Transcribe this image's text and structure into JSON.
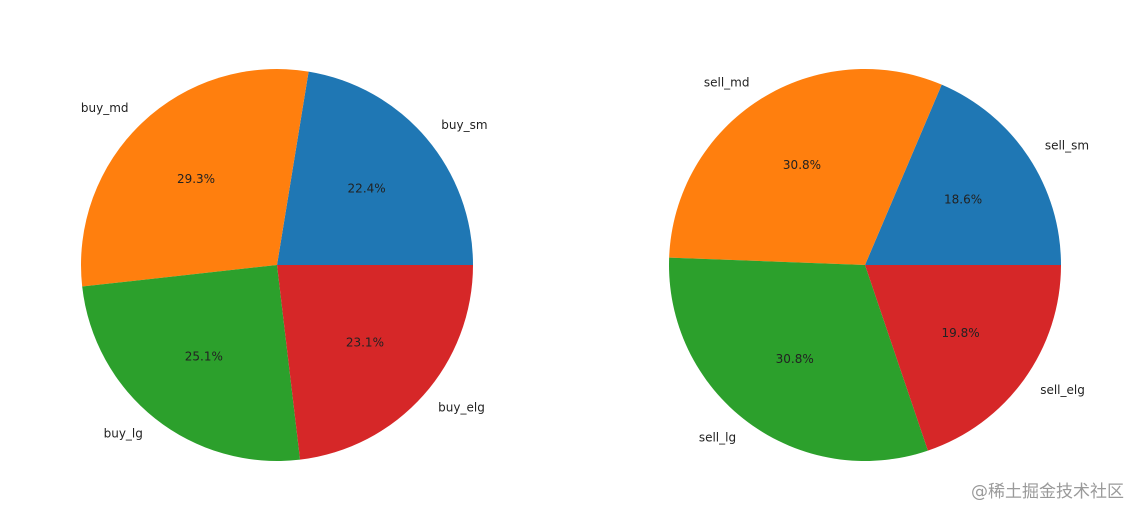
{
  "chart_data": [
    {
      "type": "pie",
      "categories": [
        "buy_sm",
        "buy_md",
        "buy_lg",
        "buy_elg"
      ],
      "values": [
        22.4,
        29.3,
        25.1,
        23.1
      ],
      "value_labels": [
        "22.4%",
        "29.3%",
        "25.1%",
        "23.1%"
      ],
      "colors": [
        "#1f77b4",
        "#ff7f0e",
        "#2ca02c",
        "#d62728"
      ]
    },
    {
      "type": "pie",
      "categories": [
        "sell_sm",
        "sell_md",
        "sell_lg",
        "sell_elg"
      ],
      "values": [
        18.6,
        30.8,
        30.8,
        19.8
      ],
      "value_labels": [
        "18.6%",
        "30.8%",
        "30.8%",
        "19.8%"
      ],
      "colors": [
        "#1f77b4",
        "#ff7f0e",
        "#2ca02c",
        "#d62728"
      ]
    }
  ],
  "watermark": "@稀土掘金技术社区"
}
